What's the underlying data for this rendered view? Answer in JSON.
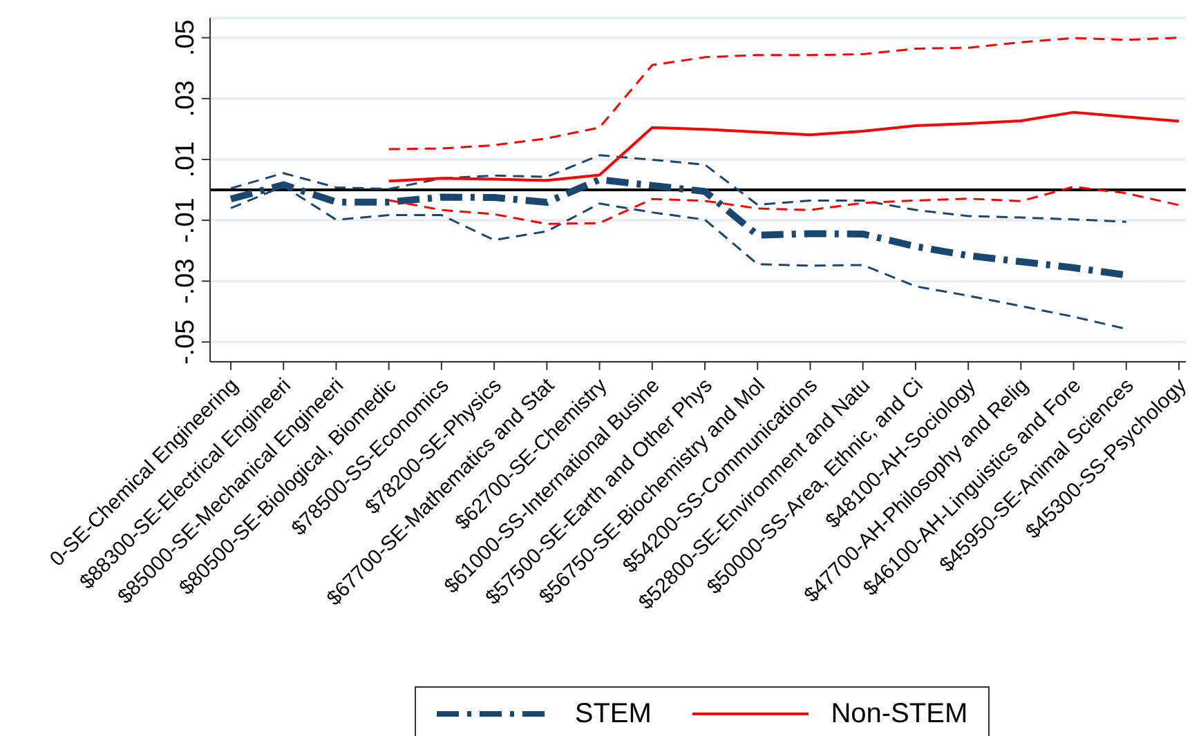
{
  "chart_data": {
    "type": "line",
    "categories": [
      "0-SE-Chemical Engineering",
      "$88300-SE-Electrical Engineeri",
      "$85000-SE-Mechanical Engineeri",
      "$80500-SE-Biological, Biomedic",
      "$78500-SS-Economics",
      "$78200-SE-Physics",
      "$67700-SE-Mathematics and Stat",
      "$62700-SE-Chemistry",
      "$61000-SS-International Busine",
      "$57500-SE-Earth and Other Phys",
      "$56750-SE-Biochemistry and Mol",
      "$54200-SS-Communications",
      "$52800-SE-Environment and Natu",
      "$50000-SS-Area, Ethnic, and Ci",
      "$48100-AH-Sociology",
      "$47700-AH-Philosophy and Relig",
      "$46100-AH-Linguistics and Fore",
      "$45950-SE-Animal Sciences",
      "$45300-SS-Psychology"
    ],
    "ylim": [
      -0.0565,
      0.0565
    ],
    "yticks": [
      {
        "value": -0.05,
        "label": "-.05"
      },
      {
        "value": -0.03,
        "label": "-.03"
      },
      {
        "value": -0.01,
        "label": "-.01"
      },
      {
        "value": 0.01,
        "label": ".01"
      },
      {
        "value": 0.03,
        "label": ".03"
      },
      {
        "value": 0.05,
        "label": ".05"
      }
    ],
    "grid": "y",
    "legend": "bottom",
    "ref_lines": [
      {
        "axis": "y",
        "value": 0,
        "color": "#000000"
      }
    ],
    "series": [
      {
        "name": "STEM",
        "color": "#1a476f",
        "line_style": "dashdot",
        "values": [
          -0.003,
          0.0017,
          -0.004,
          -0.004,
          -0.0024,
          -0.0025,
          -0.0041,
          0.0034,
          0.0014,
          -0.0005,
          -0.0149,
          -0.0144,
          -0.0145,
          -0.0186,
          -0.0216,
          -0.0236,
          -0.0256,
          -0.028,
          null
        ]
      },
      {
        "color": "#1a476f",
        "line_style": "dashed",
        "values": [
          0.0005,
          0.0055,
          0.0008,
          0.0003,
          0.0038,
          0.0047,
          0.0043,
          0.0114,
          0.0099,
          0.0083,
          -0.0049,
          -0.0035,
          -0.0035,
          -0.0066,
          -0.0086,
          -0.0091,
          -0.0097,
          -0.0105,
          null
        ]
      },
      {
        "color": "#1a476f",
        "line_style": "dashed",
        "values": [
          -0.006,
          0.0012,
          -0.0098,
          -0.0083,
          -0.0083,
          -0.0165,
          -0.0136,
          -0.0045,
          -0.0074,
          -0.0098,
          -0.0244,
          -0.0249,
          -0.0247,
          -0.0317,
          -0.0348,
          -0.0382,
          -0.0417,
          -0.0457,
          null
        ]
      },
      {
        "name": "Non-STEM",
        "color": "#ff0000",
        "line_style": "solid",
        "values": [
          null,
          null,
          null,
          0.0029,
          0.0038,
          0.0035,
          0.0031,
          0.0049,
          0.0205,
          0.0199,
          0.019,
          0.0181,
          0.0193,
          0.0211,
          0.0218,
          0.0227,
          0.0255,
          0.024,
          0.0226
        ]
      },
      {
        "color": "#ff0000",
        "line_style": "dashed",
        "values": [
          null,
          null,
          null,
          0.0134,
          0.0136,
          0.0147,
          0.0169,
          0.0205,
          0.041,
          0.0436,
          0.0443,
          0.0443,
          0.0446,
          0.0464,
          0.0467,
          0.0485,
          0.0499,
          0.0493,
          0.05
        ]
      },
      {
        "color": "#ff0000",
        "line_style": "dashed",
        "values": [
          null,
          null,
          null,
          -0.0034,
          -0.0066,
          -0.008,
          -0.0112,
          -0.0109,
          -0.003,
          -0.0036,
          -0.0061,
          -0.0066,
          -0.0043,
          -0.0035,
          -0.0029,
          -0.0037,
          0.001,
          -0.0011,
          -0.005
        ]
      }
    ]
  }
}
